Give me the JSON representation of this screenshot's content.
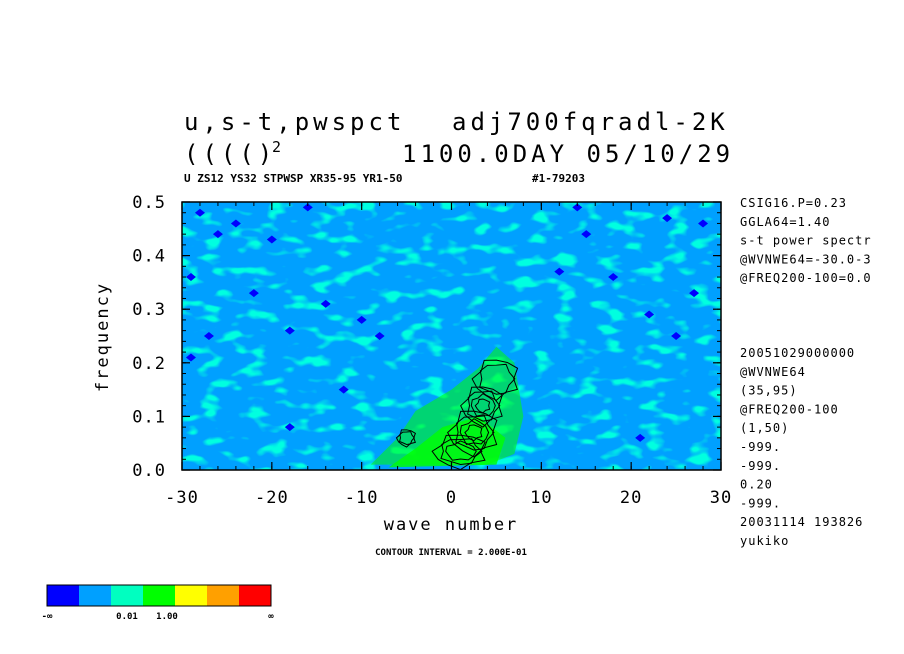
{
  "header": {
    "title_left": "u,s-t,pwspct",
    "title_right": "adj700fqradl-2K",
    "subtitle_left": "(((()",
    "subtitle_sup": "2",
    "subtitle_right": "1100.0DAY 05/10/29",
    "info_line_left": "U ZS12 YS32 STPWSP XR35-95 YR1-50",
    "info_line_right": "#1-79203"
  },
  "side_text": {
    "block1": [
      "CSIG16.P=0.23",
      "GGLA64=1.40",
      "s-t power spectr",
      "@WVNWE64=-30.0-3",
      "@FREQ200-100=0.0"
    ],
    "block2": [
      "20051029000000",
      "@WVNWE64",
      "(35,95)",
      "@FREQ200-100",
      "(1,50)",
      "-999.",
      "-999.",
      "0.20",
      "-999.",
      "20031114 193826",
      "yukiko"
    ]
  },
  "footer": {
    "contour_interval": "CONTOUR INTERVAL = 2.000E-01"
  },
  "legend": {
    "colors": [
      "#0000ff",
      "#00a0ff",
      "#00ffc0",
      "#00ff00",
      "#ffff00",
      "#ffa000",
      "#ff0000"
    ],
    "labels": [
      "-∞",
      "0.01",
      "1.00",
      "∞"
    ]
  },
  "chart_data": {
    "type": "heatmap",
    "title": "u,s-t,pwspct adj700fqradl-2K",
    "xlabel": "wave number",
    "ylabel": "frequency",
    "xlim": [
      -30,
      30
    ],
    "ylim": [
      0.0,
      0.5
    ],
    "x_ticks": [
      "-30",
      "-20",
      "-10",
      "0",
      "10",
      "20",
      "30"
    ],
    "y_ticks": [
      "0.0",
      "0.1",
      "0.2",
      "0.3",
      "0.4",
      "0.5"
    ],
    "background_level": "0.01-1.00 band (light blue / cyan-green)",
    "peak_region": {
      "x_range": [
        -2,
        6
      ],
      "y_range": [
        0.0,
        0.2
      ]
    },
    "contour_interval": 0.2
  }
}
